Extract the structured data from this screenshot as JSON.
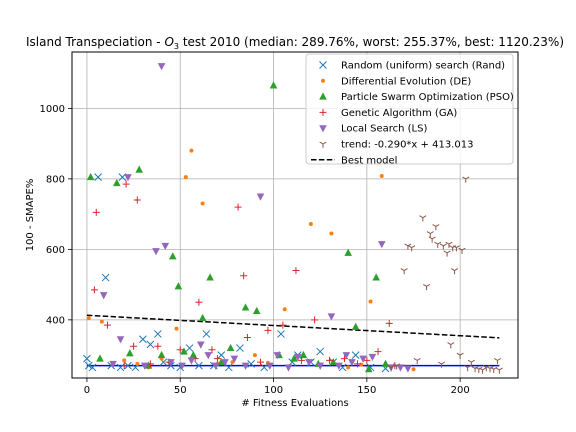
{
  "colors": {
    "rand": "#1f77b4",
    "de": "#ff7f0e",
    "pso": "#2ca02c",
    "ga": "#d62728",
    "ls": "#9467bd",
    "trend": "#8c564b",
    "best": "#000000",
    "grid": "#b0b0b0"
  },
  "chart_data": {
    "type": "scatter",
    "title": "Island Transpeciation - $O_3$ test 2010 (median: 289.76%, worst: 255.37%, best: 1120.23%)",
    "title_parts": {
      "prefix": "Island Transpeciation - ",
      "symbol": "O",
      "subscript": "3",
      "suffix": " test 2010 (median: 289.76%, worst: 255.37%, best: 1120.23%)"
    },
    "xlabel": "# Fitness Evaluations",
    "ylabel": "100 - SMAPE%",
    "xlim": [
      -8,
      231
    ],
    "ylim": [
      235,
      1160
    ],
    "xticks": [
      0,
      50,
      100,
      150,
      200
    ],
    "yticks": [
      400,
      600,
      800,
      1000
    ],
    "grid": true,
    "legend_position": "top-right",
    "series": [
      {
        "name": "Random (uniform) search (Rand)",
        "marker": "x",
        "points": [
          [
            0,
            290
          ],
          [
            1,
            270
          ],
          [
            3,
            265
          ],
          [
            6,
            805
          ],
          [
            10,
            520
          ],
          [
            13,
            270
          ],
          [
            18,
            265
          ],
          [
            19,
            805
          ],
          [
            22,
            270
          ],
          [
            26,
            265
          ],
          [
            30,
            345
          ],
          [
            34,
            330
          ],
          [
            38,
            360
          ],
          [
            41,
            280
          ],
          [
            45,
            270
          ],
          [
            50,
            265
          ],
          [
            55,
            320
          ],
          [
            60,
            270
          ],
          [
            64,
            360
          ],
          [
            68,
            270
          ],
          [
            72,
            300
          ],
          [
            76,
            265
          ],
          [
            82,
            320
          ],
          [
            88,
            275
          ],
          [
            95,
            265
          ],
          [
            104,
            360
          ],
          [
            110,
            280
          ],
          [
            113,
            300
          ],
          [
            120,
            280
          ],
          [
            125,
            310
          ],
          [
            132,
            280
          ],
          [
            137,
            265
          ],
          [
            144,
            300
          ],
          [
            152,
            265
          ],
          [
            160,
            262
          ]
        ]
      },
      {
        "name": "Differential Evolution (DE)",
        "marker": "o",
        "points": [
          [
            1,
            405
          ],
          [
            8,
            395
          ],
          [
            20,
            285
          ],
          [
            27,
            275
          ],
          [
            33,
            265
          ],
          [
            40,
            290
          ],
          [
            48,
            375
          ],
          [
            53,
            805
          ],
          [
            56,
            880
          ],
          [
            62,
            730
          ],
          [
            70,
            275
          ],
          [
            78,
            280
          ],
          [
            90,
            300
          ],
          [
            97,
            278
          ],
          [
            106,
            430
          ],
          [
            120,
            672
          ],
          [
            131,
            645
          ],
          [
            140,
            265
          ],
          [
            147,
            273
          ],
          [
            152,
            452
          ],
          [
            158,
            808
          ],
          [
            168,
            265
          ],
          [
            175,
            260
          ]
        ]
      },
      {
        "name": "Particle Swarm Optimization (PSO)",
        "marker": "^",
        "points": [
          [
            2,
            805
          ],
          [
            7,
            290
          ],
          [
            16,
            788
          ],
          [
            23,
            305
          ],
          [
            28,
            826
          ],
          [
            33,
            270
          ],
          [
            40,
            300
          ],
          [
            46,
            580
          ],
          [
            49,
            495
          ],
          [
            52,
            310
          ],
          [
            57,
            300
          ],
          [
            62,
            405
          ],
          [
            66,
            520
          ],
          [
            72,
            280
          ],
          [
            77,
            320
          ],
          [
            85,
            435
          ],
          [
            91,
            425
          ],
          [
            100,
            1065
          ],
          [
            103,
            300
          ],
          [
            111,
            290
          ],
          [
            116,
            300
          ],
          [
            124,
            275
          ],
          [
            132,
            280
          ],
          [
            140,
            590
          ],
          [
            144,
            380
          ],
          [
            151,
            260
          ],
          [
            155,
            520
          ],
          [
            160,
            275
          ]
        ]
      },
      {
        "name": "Genetic Algorithm (GA)",
        "marker": "+",
        "points": [
          [
            4,
            485
          ],
          [
            5,
            705
          ],
          [
            11,
            385
          ],
          [
            20,
            270
          ],
          [
            21,
            785
          ],
          [
            25,
            325
          ],
          [
            27,
            740
          ],
          [
            34,
            275
          ],
          [
            38,
            325
          ],
          [
            44,
            280
          ],
          [
            50,
            315
          ],
          [
            58,
            290
          ],
          [
            60,
            450
          ],
          [
            67,
            315
          ],
          [
            70,
            290
          ],
          [
            81,
            720
          ],
          [
            84,
            525
          ],
          [
            86,
            350
          ],
          [
            93,
            280
          ],
          [
            97,
            370
          ],
          [
            105,
            385
          ],
          [
            112,
            540
          ],
          [
            115,
            285
          ],
          [
            122,
            400
          ],
          [
            130,
            285
          ],
          [
            138,
            290
          ],
          [
            145,
            275
          ],
          [
            150,
            285
          ],
          [
            156,
            310
          ],
          [
            162,
            390
          ],
          [
            165,
            270
          ]
        ]
      },
      {
        "name": "Local Search (LS)",
        "marker": "v",
        "points": [
          [
            9,
            470
          ],
          [
            14,
            275
          ],
          [
            18,
            345
          ],
          [
            22,
            805
          ],
          [
            31,
            270
          ],
          [
            37,
            595
          ],
          [
            40,
            1120
          ],
          [
            42,
            610
          ],
          [
            45,
            280
          ],
          [
            51,
            270
          ],
          [
            56,
            285
          ],
          [
            61,
            330
          ],
          [
            65,
            300
          ],
          [
            69,
            270
          ],
          [
            74,
            280
          ],
          [
            79,
            290
          ],
          [
            85,
            270
          ],
          [
            93,
            750
          ],
          [
            98,
            270
          ],
          [
            102,
            300
          ],
          [
            108,
            265
          ],
          [
            113,
            295
          ],
          [
            119,
            280
          ],
          [
            125,
            270
          ],
          [
            131,
            410
          ],
          [
            135,
            270
          ],
          [
            139,
            300
          ],
          [
            142,
            280
          ],
          [
            148,
            290
          ],
          [
            153,
            295
          ],
          [
            158,
            615
          ],
          [
            163,
            265
          ],
          [
            168,
            265
          ],
          [
            172,
            262
          ]
        ]
      },
      {
        "name": "trend: -0.290*x + 413.013",
        "marker": "1",
        "points": [
          [
            163,
            265
          ],
          [
            166,
            270
          ],
          [
            170,
            540
          ],
          [
            172,
            610
          ],
          [
            174,
            605
          ],
          [
            177,
            285
          ],
          [
            180,
            690
          ],
          [
            182,
            495
          ],
          [
            184,
            645
          ],
          [
            185,
            630
          ],
          [
            187,
            665
          ],
          [
            188,
            615
          ],
          [
            190,
            275
          ],
          [
            191,
            610
          ],
          [
            193,
            590
          ],
          [
            194,
            615
          ],
          [
            195,
            330
          ],
          [
            196,
            605
          ],
          [
            197,
            540
          ],
          [
            198,
            605
          ],
          [
            200,
            300
          ],
          [
            201,
            598
          ],
          [
            203,
            800
          ],
          [
            204,
            265
          ],
          [
            206,
            280
          ],
          [
            208,
            262
          ],
          [
            210,
            260
          ],
          [
            212,
            258
          ],
          [
            214,
            265
          ],
          [
            216,
            262
          ],
          [
            218,
            260
          ],
          [
            220,
            285
          ],
          [
            221,
            258
          ]
        ]
      },
      {
        "name": "Best model",
        "style": "dashed-line",
        "line": {
          "slope": -0.29,
          "intercept": 413.013,
          "x_range": [
            0,
            221
          ]
        }
      }
    ],
    "blue_baseline": {
      "y": 270,
      "x_range": [
        0,
        221
      ],
      "color": "#0000ff"
    }
  }
}
